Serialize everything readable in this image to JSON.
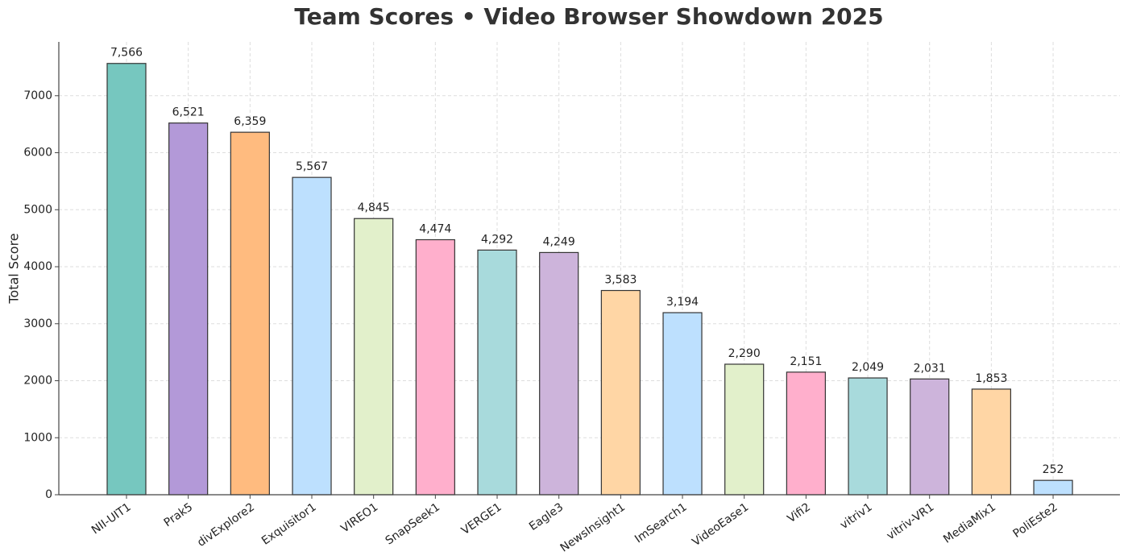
{
  "chart_data": {
    "type": "bar",
    "title": "Team Scores • Video Browser Showdown 2025",
    "y_label": "Total Score",
    "categories": [
      "NII-UIT1",
      "Prak5",
      "divExplore2",
      "Exquisitor1",
      "VIREO1",
      "SnapSeek1",
      "VERGE1",
      "Eagle3",
      "NewsInsight1",
      "ImSearch1",
      "VideoEase1",
      "Vifi2",
      "vitriv1",
      "vitriv-VR1",
      "MediaMix1",
      "PoliEste2"
    ],
    "values": [
      7566,
      6521,
      6359,
      5567,
      4845,
      4474,
      4292,
      4249,
      3583,
      3194,
      2290,
      2151,
      2049,
      2031,
      1853,
      252
    ],
    "value_labels": [
      "7,566",
      "6,521",
      "6,359",
      "5,567",
      "4,845",
      "4,474",
      "4,292",
      "4,249",
      "3,583",
      "3,194",
      "2,290",
      "2,151",
      "2,049",
      "2,031",
      "1,853",
      "252"
    ],
    "colors": [
      "#76c7bf",
      "#b399d8",
      "#ffbb7f",
      "#bde0fe",
      "#e2f0cb",
      "#ffafcc",
      "#a8dadc",
      "#cdb4db",
      "#ffd6a5",
      "#bde0fe",
      "#e2f0cb",
      "#ffafcc",
      "#a8dadc",
      "#cdb4db",
      "#ffd6a5",
      "#bde0fe"
    ],
    "ylim": [
      0,
      7944
    ],
    "yticks": [
      0,
      1000,
      2000,
      3000,
      4000,
      5000,
      6000,
      7000
    ],
    "grid": true
  }
}
